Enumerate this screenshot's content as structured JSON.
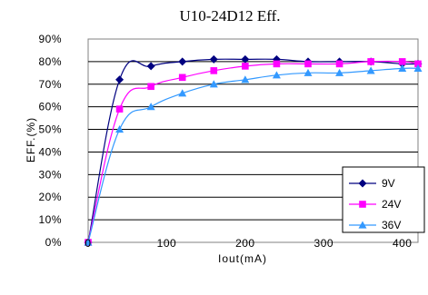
{
  "chart_data": {
    "type": "line",
    "title": "U10-24D12 Eff.",
    "xlabel": "Iout(mA)",
    "ylabel": "EFF.(%)",
    "xlim": [
      0,
      420
    ],
    "ylim": [
      0,
      90
    ],
    "x_ticks": [
      0,
      100,
      200,
      300,
      400
    ],
    "y_ticks": [
      0,
      10,
      20,
      30,
      40,
      50,
      60,
      70,
      80,
      90
    ],
    "y_tick_suffix": "%",
    "grid": "horizontal",
    "legend_position": "bottom-right",
    "series": [
      {
        "name": "9V",
        "color": "#000080",
        "marker": "diamond",
        "x": [
          0,
          40,
          80,
          120,
          160,
          200,
          240,
          280,
          320,
          360,
          400,
          420
        ],
        "y": [
          0,
          72,
          78,
          80,
          81,
          81,
          81,
          80,
          80,
          80,
          79,
          79
        ]
      },
      {
        "name": "24V",
        "color": "#ff00ff",
        "marker": "square",
        "x": [
          0,
          40,
          80,
          120,
          160,
          200,
          240,
          280,
          320,
          360,
          400,
          420
        ],
        "y": [
          0,
          59,
          69,
          73,
          76,
          78,
          79,
          79,
          79,
          80,
          80,
          79
        ]
      },
      {
        "name": "36V",
        "color": "#3399ff",
        "marker": "triangle",
        "x": [
          0,
          40,
          80,
          120,
          160,
          200,
          240,
          280,
          320,
          360,
          400,
          420
        ],
        "y": [
          0,
          50,
          60,
          66,
          70,
          72,
          74,
          75,
          75,
          76,
          77,
          77
        ]
      }
    ]
  }
}
